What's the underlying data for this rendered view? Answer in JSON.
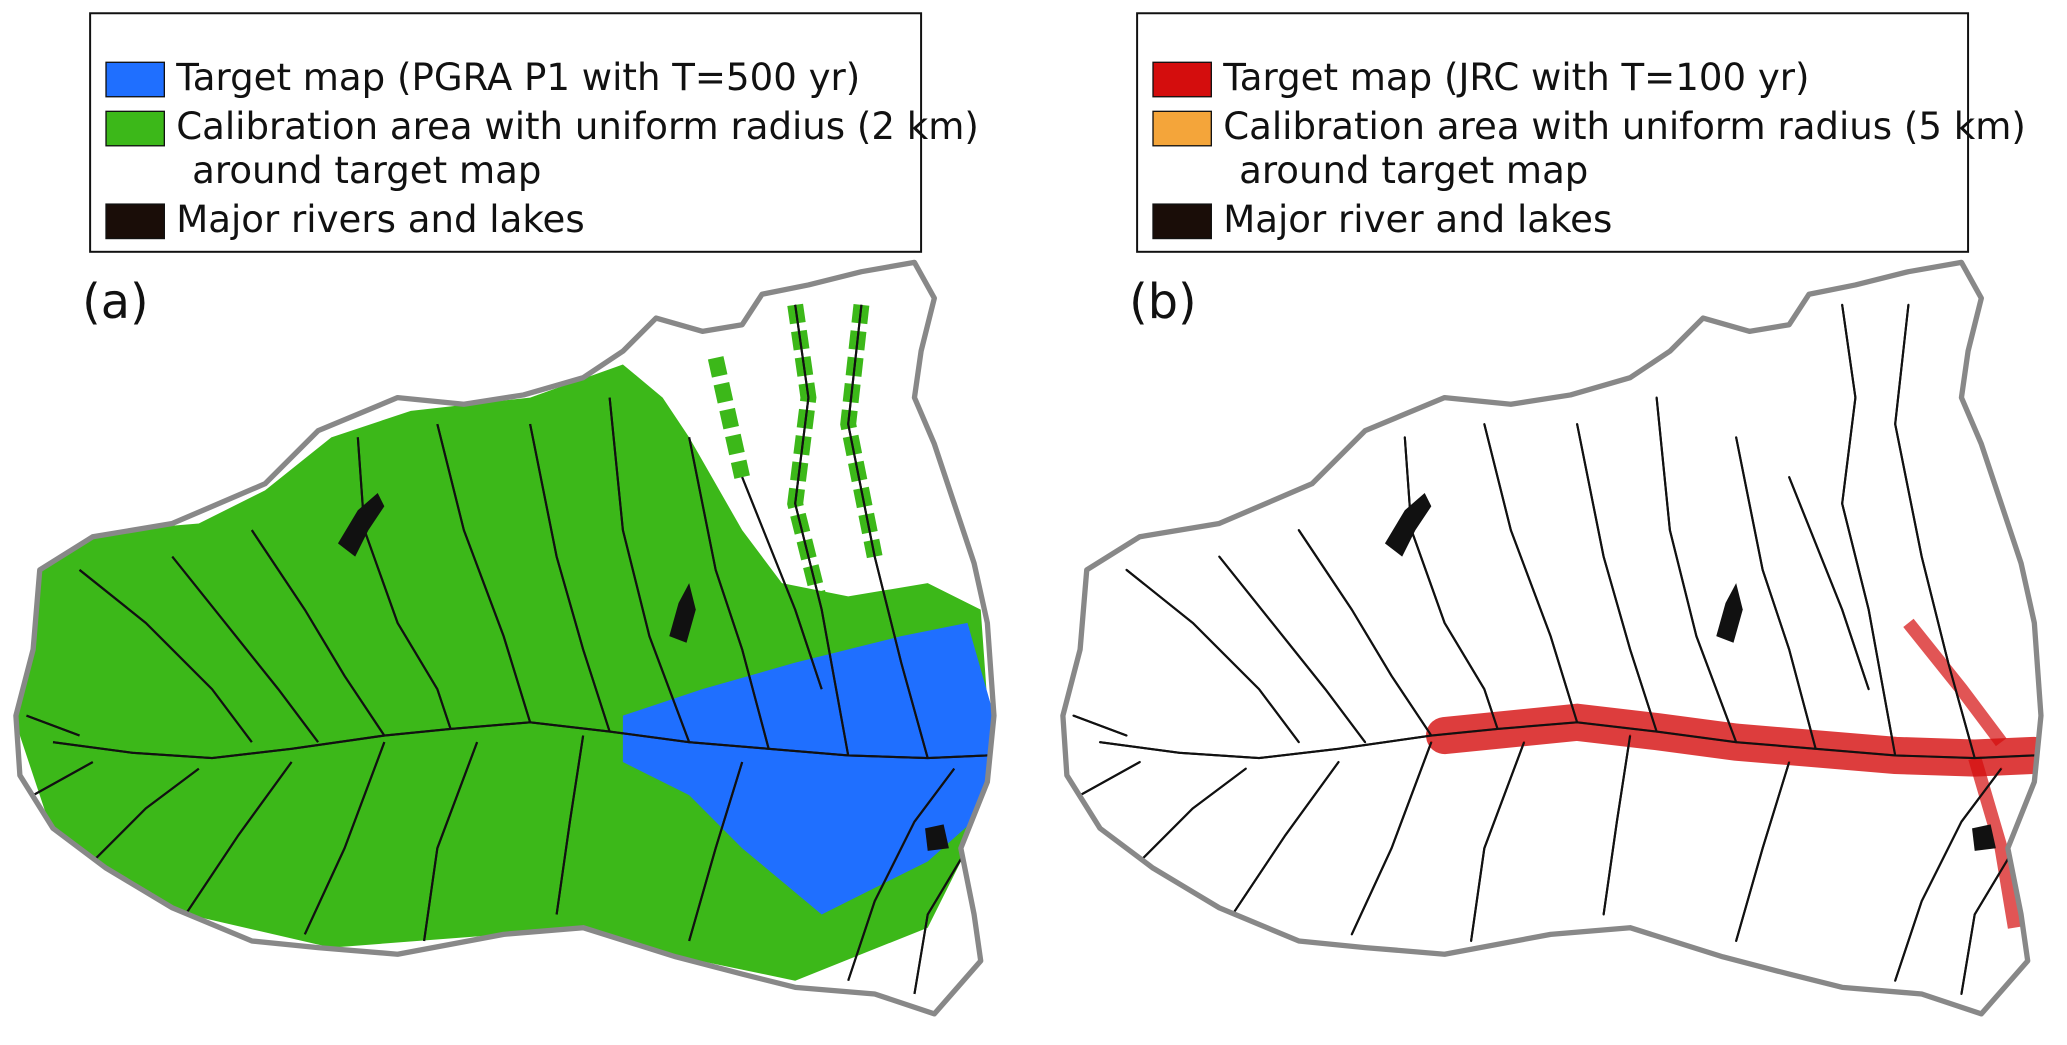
{
  "panels": [
    {
      "label": "(a)",
      "legend": [
        {
          "lines": [
            "Target map (PGRA P1 with T=500 yr)"
          ],
          "color": "#1f6fff"
        },
        {
          "lines": [
            "Calibration area with uniform radius (2 km)",
            "around target map"
          ],
          "color": "#3cb819"
        },
        {
          "lines": [
            "Major rivers and lakes"
          ],
          "color": "#1a0d08"
        }
      ]
    },
    {
      "label": "(b)",
      "legend": [
        {
          "lines": [
            "Target map (JRC with T=100 yr)"
          ],
          "color": "#d40d0d"
        },
        {
          "lines": [
            "Calibration area with uniform radius (5 km)",
            "around target map"
          ],
          "color": "#f4a53a"
        },
        {
          "lines": [
            "Major river and lakes"
          ],
          "color": "#1a0d08"
        }
      ]
    }
  ]
}
